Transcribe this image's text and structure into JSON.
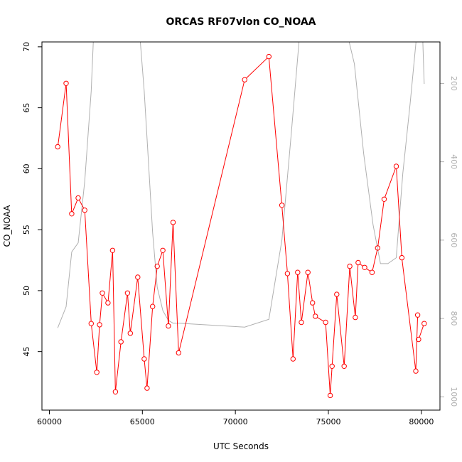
{
  "chart_data": {
    "type": "line",
    "title": "ORCAS RF07vlon CO_NOAA",
    "xlabel": "UTC Seconds",
    "ylabel": "CO_NOAA",
    "xlim": [
      59600,
      81000
    ],
    "ylim": [
      40.2,
      70.4
    ],
    "x_ticks": [
      60000,
      65000,
      70000,
      75000,
      80000
    ],
    "y_ticks": [
      45,
      50,
      55,
      60,
      65,
      70
    ],
    "right_axis": {
      "ticks": [
        200,
        400,
        600,
        800,
        1000
      ],
      "range": [
        94,
        1034
      ],
      "color": "#b0b0b0"
    },
    "series": [
      {
        "color": "#ff0000",
        "marker": "open-circle",
        "x": [
          60450,
          60900,
          61200,
          61550,
          61900,
          62250,
          62550,
          62700,
          62850,
          63150,
          63400,
          63550,
          63850,
          64200,
          64350,
          64750,
          65100,
          65250,
          65550,
          65800,
          66100,
          66400,
          66650,
          66950,
          70500,
          71800,
          72500,
          72800,
          73100,
          73350,
          73550,
          73900,
          74150,
          74300,
          74850,
          75100,
          75200,
          75450,
          75850,
          76150,
          76450,
          76600,
          76950,
          77350,
          77650,
          78000,
          78650,
          78950,
          79700,
          79800,
          79850,
          80150
        ],
        "y": [
          61.8,
          67.0,
          56.3,
          57.6,
          56.6,
          47.3,
          43.3,
          47.2,
          49.8,
          49.0,
          53.3,
          41.7,
          45.8,
          49.8,
          46.5,
          51.1,
          44.4,
          42.0,
          48.7,
          52.0,
          53.3,
          47.1,
          55.6,
          44.9,
          67.3,
          69.2,
          57.0,
          51.4,
          44.4,
          51.5,
          47.4,
          51.5,
          49.0,
          47.9,
          47.4,
          41.4,
          43.8,
          49.7,
          43.8,
          52.0,
          47.8,
          52.3,
          51.9,
          51.5,
          53.5,
          57.5,
          60.2,
          52.7,
          43.4,
          48.0,
          46.0,
          47.3
        ],
        "gap_after_index": [
          49
        ]
      },
      {
        "color": "#b0b0b0",
        "axis": "right",
        "x": [
          60450,
          60900,
          61200,
          61550,
          61900,
          62250,
          62400,
          64800,
          64900,
          65100,
          65300,
          65550,
          65800,
          66100,
          66400,
          66650,
          66950,
          70500,
          71800,
          72500,
          73000,
          73500,
          73900,
          74400,
          74900,
          75400,
          75900,
          76400,
          76900,
          77400,
          77800,
          78200,
          78650,
          79000,
          79400,
          79800,
          80050,
          80150
        ],
        "y": [
          824,
          770,
          630,
          607,
          450,
          220,
          50,
          50,
          100,
          220,
          380,
          580,
          720,
          780,
          805,
          812,
          812,
          822,
          802,
          600,
          330,
          50,
          50,
          50,
          50,
          50,
          50,
          150,
          380,
          560,
          660,
          660,
          645,
          430,
          250,
          50,
          50,
          201
        ]
      }
    ]
  }
}
